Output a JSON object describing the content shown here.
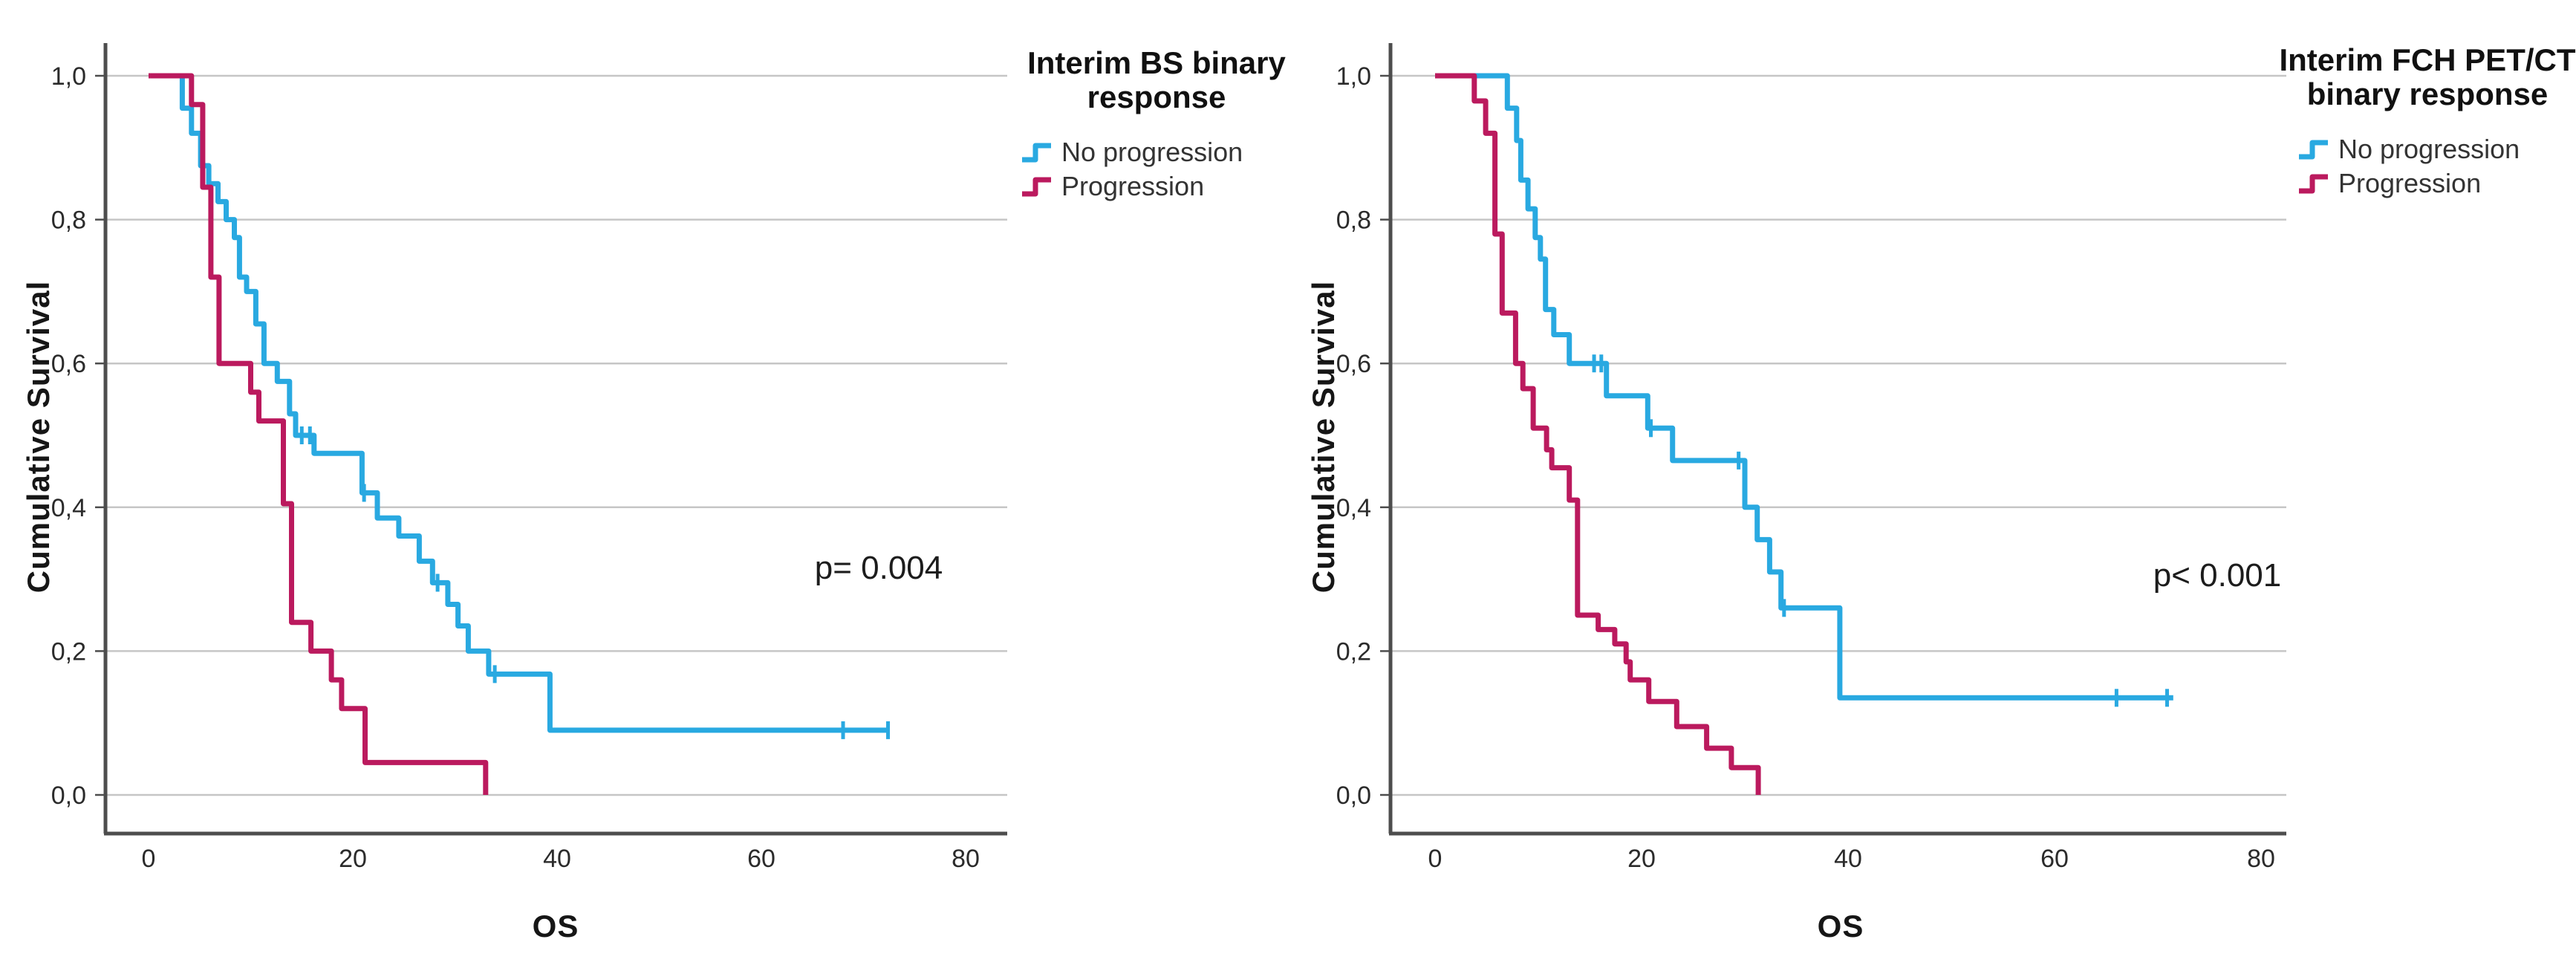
{
  "figure": {
    "background": "#ffffff",
    "colors": {
      "no_progression": "#29A9E1",
      "progression": "#BB1A5E",
      "gridline": "#C6C6C6",
      "axis": "#4D4D4D",
      "text": "#1A1A1A"
    }
  },
  "charts": [
    {
      "id": "left",
      "legend_title_lines": [
        "Interim BS binary",
        "response"
      ],
      "legend_items": [
        {
          "label": "No progression",
          "color": "#29A9E1"
        },
        {
          "label": "Progression",
          "color": "#BB1A5E"
        }
      ],
      "ylabel": "Cumulative Survival",
      "xlabel": "OS",
      "p_label": "p= 0.004",
      "yticks": [
        {
          "v": 1.0,
          "label": "1,0"
        },
        {
          "v": 0.8,
          "label": "0,8"
        },
        {
          "v": 0.6,
          "label": "0,6"
        },
        {
          "v": 0.4,
          "label": "0,4"
        },
        {
          "v": 0.2,
          "label": "0,2"
        },
        {
          "v": 0.0,
          "label": "0,0"
        }
      ],
      "xticks": [
        {
          "v": 0,
          "label": "0"
        },
        {
          "v": 20,
          "label": "20"
        },
        {
          "v": 40,
          "label": "40"
        },
        {
          "v": 60,
          "label": "60"
        },
        {
          "v": 80,
          "label": "80"
        }
      ]
    },
    {
      "id": "right",
      "legend_title_lines": [
        "Interim FCH PET/CT",
        "binary response"
      ],
      "legend_items": [
        {
          "label": "No progression",
          "color": "#29A9E1"
        },
        {
          "label": "Progression",
          "color": "#BB1A5E"
        }
      ],
      "ylabel": "Cumulative Survival",
      "xlabel": "OS",
      "p_label": "p< 0.001",
      "yticks": [
        {
          "v": 1.0,
          "label": "1,0"
        },
        {
          "v": 0.8,
          "label": "0,8"
        },
        {
          "v": 0.6,
          "label": "0,6"
        },
        {
          "v": 0.4,
          "label": "0,4"
        },
        {
          "v": 0.2,
          "label": "0,2"
        },
        {
          "v": 0.0,
          "label": "0,0"
        }
      ],
      "xticks": [
        {
          "v": 0,
          "label": "0"
        },
        {
          "v": 20,
          "label": "20"
        },
        {
          "v": 40,
          "label": "40"
        },
        {
          "v": 60,
          "label": "60"
        },
        {
          "v": 80,
          "label": "80"
        }
      ]
    }
  ],
  "chart_data": [
    {
      "type": "km_survival_step",
      "title": "Interim BS binary response",
      "xlabel": "OS",
      "ylabel": "Cumulative Survival",
      "xlim": [
        0,
        84
      ],
      "ylim": [
        0,
        1
      ],
      "xticks": [
        0,
        20,
        40,
        60,
        80
      ],
      "yticks": [
        1.0,
        0.8,
        0.6,
        0.4,
        0.2,
        0.0
      ],
      "grid": "horizontal",
      "legend_position": "right-top",
      "p_annotation": "p= 0.004",
      "series": [
        {
          "name": "No progression",
          "color": "#29A9E1",
          "start": [
            0,
            1.0
          ],
          "drops": [
            [
              3.3,
              0.955
            ],
            [
              4.2,
              0.92
            ],
            [
              5.1,
              0.875
            ],
            [
              5.9,
              0.85
            ],
            [
              6.8,
              0.825
            ],
            [
              7.6,
              0.8
            ],
            [
              8.4,
              0.775
            ],
            [
              8.9,
              0.72
            ],
            [
              9.6,
              0.7
            ],
            [
              10.5,
              0.655
            ],
            [
              11.3,
              0.6
            ],
            [
              12.6,
              0.575
            ],
            [
              13.8,
              0.53
            ],
            [
              14.4,
              0.5
            ],
            [
              16.2,
              0.475
            ],
            [
              20.9,
              0.42
            ],
            [
              22.4,
              0.385
            ],
            [
              24.5,
              0.36
            ],
            [
              26.5,
              0.325
            ],
            [
              27.8,
              0.295
            ],
            [
              29.3,
              0.265
            ],
            [
              30.3,
              0.235
            ],
            [
              31.3,
              0.2
            ],
            [
              33.3,
              0.168
            ],
            [
              39.3,
              0.09
            ]
          ],
          "end_t": 72.5,
          "censor_marks": [
            [
              15.0,
              0.5
            ],
            [
              15.8,
              0.5
            ],
            [
              21.1,
              0.42
            ],
            [
              28.3,
              0.295
            ],
            [
              33.9,
              0.168
            ],
            [
              68.0,
              0.09
            ],
            [
              72.4,
              0.09
            ]
          ]
        },
        {
          "name": "Progression",
          "color": "#BB1A5E",
          "start": [
            0,
            1.0
          ],
          "drops": [
            [
              4.2,
              0.96
            ],
            [
              5.3,
              0.845
            ],
            [
              6.1,
              0.72
            ],
            [
              6.9,
              0.6
            ],
            [
              10.0,
              0.56
            ],
            [
              10.8,
              0.52
            ],
            [
              13.2,
              0.405
            ],
            [
              14.0,
              0.24
            ],
            [
              15.9,
              0.2
            ],
            [
              17.9,
              0.16
            ],
            [
              18.9,
              0.12
            ],
            [
              21.2,
              0.045
            ],
            [
              33.0,
              0.0
            ]
          ],
          "end_t": 33.0,
          "censor_marks": []
        }
      ]
    },
    {
      "type": "km_survival_step",
      "title": "Interim FCH PET/CT binary response",
      "xlabel": "OS",
      "ylabel": "Cumulative Survival",
      "xlim": [
        0,
        84
      ],
      "ylim": [
        0,
        1
      ],
      "xticks": [
        0,
        20,
        40,
        60,
        80
      ],
      "yticks": [
        1.0,
        0.8,
        0.6,
        0.4,
        0.2,
        0.0
      ],
      "grid": "horizontal",
      "legend_position": "right-top",
      "p_annotation": "p< 0.001",
      "series": [
        {
          "name": "No progression",
          "color": "#29A9E1",
          "start": [
            0,
            1.0
          ],
          "drops": [
            [
              7.0,
              0.955
            ],
            [
              7.9,
              0.91
            ],
            [
              8.3,
              0.855
            ],
            [
              9.0,
              0.815
            ],
            [
              9.7,
              0.775
            ],
            [
              10.2,
              0.745
            ],
            [
              10.7,
              0.675
            ],
            [
              11.5,
              0.64
            ],
            [
              13.0,
              0.6
            ],
            [
              16.6,
              0.555
            ],
            [
              20.6,
              0.51
            ],
            [
              23.0,
              0.465
            ],
            [
              30.0,
              0.4
            ],
            [
              31.2,
              0.355
            ],
            [
              32.4,
              0.31
            ],
            [
              33.5,
              0.26
            ],
            [
              39.2,
              0.135
            ]
          ],
          "end_t": 71.5,
          "censor_marks": [
            [
              15.4,
              0.6
            ],
            [
              16.1,
              0.6
            ],
            [
              20.9,
              0.51
            ],
            [
              29.4,
              0.465
            ],
            [
              33.8,
              0.26
            ],
            [
              66.0,
              0.135
            ],
            [
              70.9,
              0.135
            ]
          ]
        },
        {
          "name": "Progression",
          "color": "#BB1A5E",
          "start": [
            0,
            1.0
          ],
          "drops": [
            [
              3.8,
              0.965
            ],
            [
              4.9,
              0.92
            ],
            [
              5.8,
              0.78
            ],
            [
              6.5,
              0.67
            ],
            [
              7.8,
              0.6
            ],
            [
              8.5,
              0.565
            ],
            [
              9.5,
              0.51
            ],
            [
              10.8,
              0.48
            ],
            [
              11.3,
              0.455
            ],
            [
              13.0,
              0.41
            ],
            [
              13.8,
              0.25
            ],
            [
              15.8,
              0.23
            ],
            [
              17.4,
              0.21
            ],
            [
              18.5,
              0.185
            ],
            [
              18.9,
              0.16
            ],
            [
              20.7,
              0.13
            ],
            [
              23.4,
              0.095
            ],
            [
              26.3,
              0.065
            ],
            [
              28.7,
              0.038
            ],
            [
              31.3,
              0.0
            ]
          ],
          "end_t": 31.3,
          "censor_marks": []
        }
      ]
    }
  ]
}
